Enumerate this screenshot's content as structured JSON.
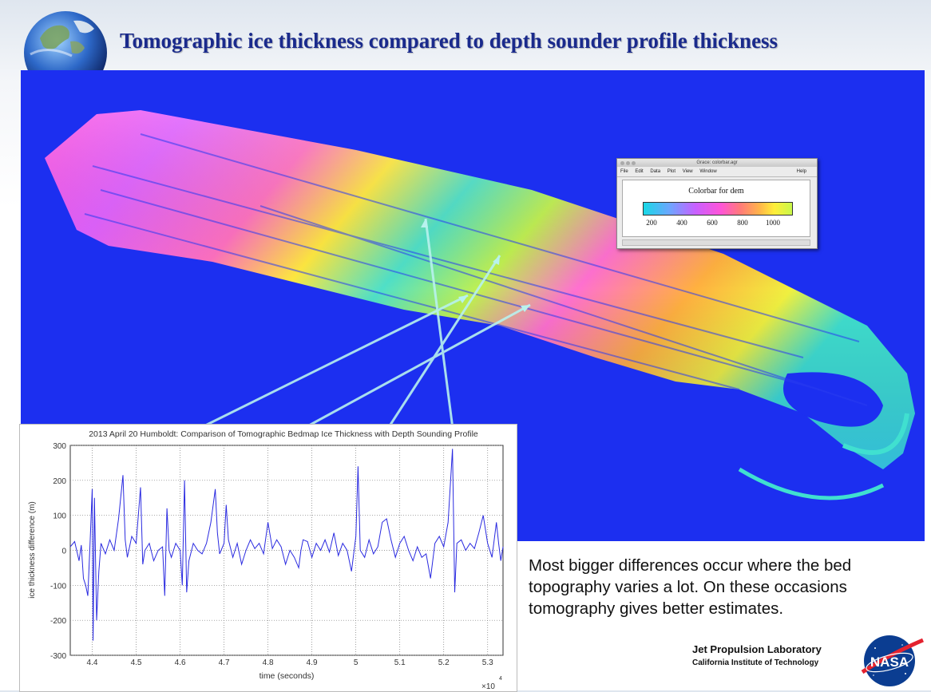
{
  "slide": {
    "title": "Tomographic ice thickness compared to depth sounder profile thickness",
    "notes": "Most bigger differences occur where the bed topography varies a lot. On these occasions tomography gives better estimates.",
    "institution": "Jet Propulsion Laboratory",
    "institution_sub": "California Institute of Technology",
    "logo_text": "NASA"
  },
  "colorbar_window": {
    "window_title": "Grace: colorbar.agr",
    "menus": [
      "File",
      "Edit",
      "Data",
      "Plot",
      "View",
      "Window"
    ],
    "help_menu": "Help",
    "heading": "Colorbar for dem",
    "tick_labels": [
      "200",
      "400",
      "600",
      "800",
      "1000"
    ],
    "colors": [
      "#18d8e6",
      "#6fa4ff",
      "#c860ff",
      "#ff55d8",
      "#ff7a7a",
      "#ffb44a",
      "#ffee3a",
      "#c9f84a"
    ]
  },
  "chart_data": {
    "type": "line",
    "title": "2013 April 20 Humboldt: Comparison of Tomographic Bedmap Ice Thickness with Depth Sounding Profile",
    "xlabel": "time (seconds)",
    "ylabel": "ice thickness difference (m)",
    "x_multiplier_label": "×10",
    "x_multiplier_exp": "4",
    "xlim": [
      4.35,
      5.335
    ],
    "ylim": [
      -300,
      300
    ],
    "xticks": [
      "4.4",
      "4.5",
      "4.6",
      "4.7",
      "4.8",
      "4.9",
      "5",
      "5.1",
      "5.2",
      "5.3"
    ],
    "yticks": [
      "-300",
      "-200",
      "-100",
      "0",
      "100",
      "200",
      "300"
    ],
    "grid": true,
    "line_color": "#2a2ae0",
    "series": [
      {
        "values": [
          [
            4.35,
            10
          ],
          [
            4.36,
            25
          ],
          [
            4.37,
            -30
          ],
          [
            4.375,
            15
          ],
          [
            4.38,
            -80
          ],
          [
            4.385,
            -100
          ],
          [
            4.39,
            -130
          ],
          [
            4.395,
            20
          ],
          [
            4.4,
            175
          ],
          [
            4.402,
            -258
          ],
          [
            4.405,
            150
          ],
          [
            4.41,
            -200
          ],
          [
            4.415,
            -60
          ],
          [
            4.42,
            20
          ],
          [
            4.43,
            -10
          ],
          [
            4.44,
            30
          ],
          [
            4.45,
            0
          ],
          [
            4.46,
            90
          ],
          [
            4.47,
            215
          ],
          [
            4.475,
            30
          ],
          [
            4.48,
            -20
          ],
          [
            4.49,
            40
          ],
          [
            4.5,
            20
          ],
          [
            4.51,
            180
          ],
          [
            4.515,
            -40
          ],
          [
            4.52,
            0
          ],
          [
            4.53,
            20
          ],
          [
            4.54,
            -30
          ],
          [
            4.55,
            0
          ],
          [
            4.56,
            10
          ],
          [
            4.565,
            -130
          ],
          [
            4.57,
            120
          ],
          [
            4.575,
            0
          ],
          [
            4.58,
            -20
          ],
          [
            4.59,
            20
          ],
          [
            4.6,
            0
          ],
          [
            4.605,
            -100
          ],
          [
            4.61,
            200
          ],
          [
            4.615,
            -120
          ],
          [
            4.62,
            -30
          ],
          [
            4.63,
            20
          ],
          [
            4.64,
            0
          ],
          [
            4.65,
            -10
          ],
          [
            4.66,
            20
          ],
          [
            4.67,
            80
          ],
          [
            4.68,
            175
          ],
          [
            4.685,
            50
          ],
          [
            4.69,
            -10
          ],
          [
            4.7,
            20
          ],
          [
            4.705,
            130
          ],
          [
            4.71,
            30
          ],
          [
            4.72,
            -20
          ],
          [
            4.73,
            20
          ],
          [
            4.74,
            -40
          ],
          [
            4.75,
            0
          ],
          [
            4.76,
            30
          ],
          [
            4.77,
            5
          ],
          [
            4.78,
            20
          ],
          [
            4.79,
            -10
          ],
          [
            4.8,
            80
          ],
          [
            4.81,
            5
          ],
          [
            4.82,
            30
          ],
          [
            4.83,
            10
          ],
          [
            4.84,
            -40
          ],
          [
            4.85,
            0
          ],
          [
            4.86,
            -20
          ],
          [
            4.87,
            -50
          ],
          [
            4.875,
            0
          ],
          [
            4.88,
            30
          ],
          [
            4.89,
            25
          ],
          [
            4.9,
            -20
          ],
          [
            4.91,
            20
          ],
          [
            4.92,
            0
          ],
          [
            4.93,
            30
          ],
          [
            4.94,
            -5
          ],
          [
            4.95,
            50
          ],
          [
            4.96,
            -15
          ],
          [
            4.97,
            20
          ],
          [
            4.98,
            0
          ],
          [
            4.99,
            -60
          ],
          [
            5.0,
            40
          ],
          [
            5.005,
            240
          ],
          [
            5.01,
            0
          ],
          [
            5.02,
            -20
          ],
          [
            5.03,
            30
          ],
          [
            5.04,
            -10
          ],
          [
            5.05,
            10
          ],
          [
            5.06,
            80
          ],
          [
            5.07,
            90
          ],
          [
            5.08,
            30
          ],
          [
            5.09,
            -20
          ],
          [
            5.1,
            20
          ],
          [
            5.11,
            40
          ],
          [
            5.12,
            0
          ],
          [
            5.13,
            -30
          ],
          [
            5.14,
            10
          ],
          [
            5.15,
            -20
          ],
          [
            5.16,
            -10
          ],
          [
            5.17,
            -80
          ],
          [
            5.18,
            20
          ],
          [
            5.19,
            40
          ],
          [
            5.2,
            10
          ],
          [
            5.21,
            80
          ],
          [
            5.22,
            290
          ],
          [
            5.225,
            -120
          ],
          [
            5.23,
            20
          ],
          [
            5.24,
            30
          ],
          [
            5.25,
            0
          ],
          [
            5.26,
            20
          ],
          [
            5.27,
            5
          ],
          [
            5.28,
            50
          ],
          [
            5.29,
            100
          ],
          [
            5.3,
            20
          ],
          [
            5.31,
            -20
          ],
          [
            5.32,
            80
          ],
          [
            5.325,
            20
          ],
          [
            5.33,
            -30
          ],
          [
            5.335,
            10
          ]
        ]
      }
    ]
  }
}
